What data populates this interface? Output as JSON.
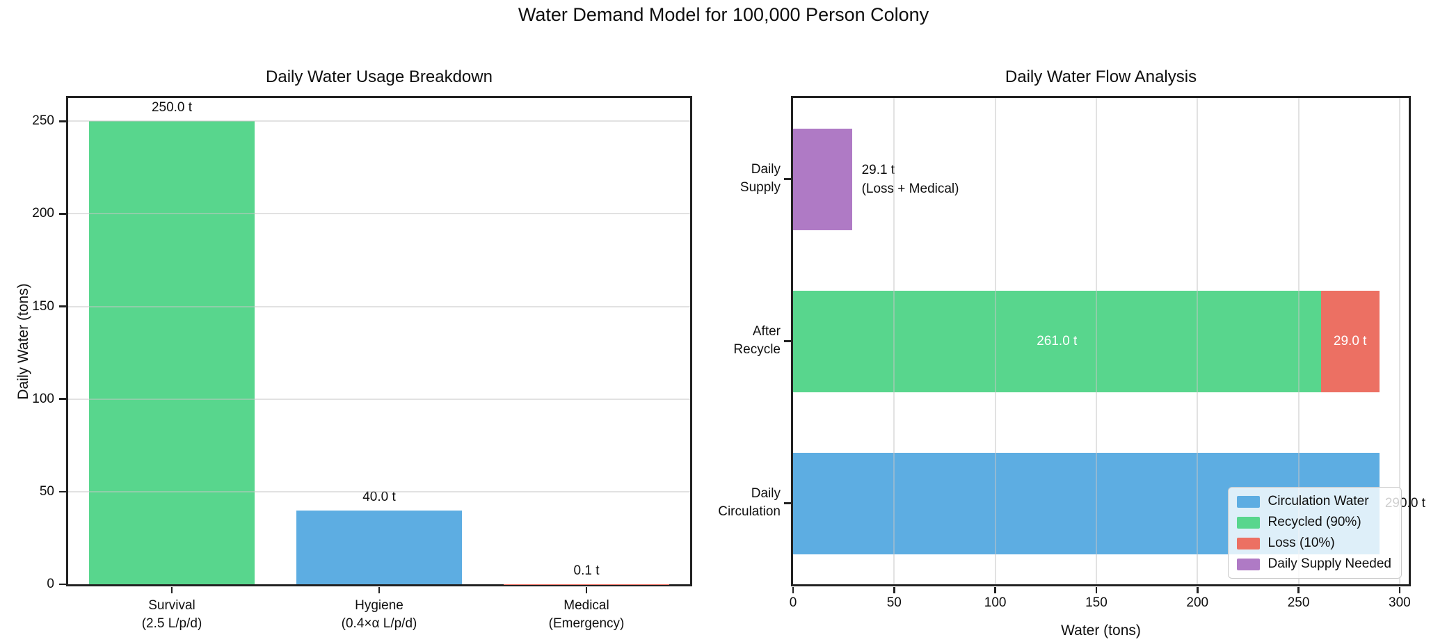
{
  "figure": {
    "suptitle": "Water Demand Model for 100,000 Person Colony",
    "background": "#ffffff",
    "text_color": "#0f0f0f",
    "spine_color": "#222222",
    "grid_color": "#c6c6c6"
  },
  "colors": {
    "blue": "#5DADE2",
    "green": "#58D68D",
    "red": "#EC7063",
    "purple": "#AF7AC5"
  },
  "chart_data": [
    {
      "id": "usage",
      "type": "bar",
      "title": "Daily Water Usage Breakdown",
      "xlabel": "",
      "ylabel": "Daily Water (tons)",
      "categories": [
        "Survival\n(2.5 L/p/d)",
        "Hygiene\n(0.4×α L/p/d)",
        "Medical\n(Emergency)"
      ],
      "values": [
        250.0,
        40.0,
        0.1
      ],
      "bar_labels": [
        "250.0 t",
        "40.0 t",
        "0.1 t"
      ],
      "bar_colors": [
        "green",
        "blue",
        "red"
      ],
      "yticks": [
        0,
        50,
        100,
        150,
        200,
        250
      ],
      "ylim": [
        0,
        262.5
      ],
      "grid": "horizontal",
      "legend": null
    },
    {
      "id": "flow",
      "type": "barh-stacked",
      "title": "Daily Water Flow Analysis",
      "xlabel": "Water (tons)",
      "ylabel": "",
      "categories": [
        "Daily\nSupply",
        "After\nRecycle",
        "Daily\nCirculation"
      ],
      "rows": [
        {
          "category": "Daily Supply",
          "segments": [
            {
              "value": 29.1,
              "color": "purple",
              "label": null
            }
          ],
          "annotation": "29.1 t\n(Loss + Medical)",
          "end_label": null
        },
        {
          "category": "After Recycle",
          "segments": [
            {
              "value": 261.0,
              "color": "green",
              "label": "261.0 t"
            },
            {
              "value": 29.0,
              "color": "red",
              "label": "29.0 t"
            }
          ],
          "annotation": null,
          "end_label": null
        },
        {
          "category": "Daily Circulation",
          "segments": [
            {
              "value": 290.0,
              "color": "blue",
              "label": null
            }
          ],
          "annotation": null,
          "end_label": "290.0 t"
        }
      ],
      "xticks": [
        0,
        50,
        100,
        150,
        200,
        250,
        300
      ],
      "xlim": [
        0,
        304.5
      ],
      "grid": "vertical",
      "legend": {
        "position": "lower right",
        "items": [
          {
            "label": "Circulation Water",
            "color": "blue"
          },
          {
            "label": "Recycled (90%)",
            "color": "green"
          },
          {
            "label": "Loss (10%)",
            "color": "red"
          },
          {
            "label": "Daily Supply Needed",
            "color": "purple"
          }
        ]
      }
    }
  ]
}
